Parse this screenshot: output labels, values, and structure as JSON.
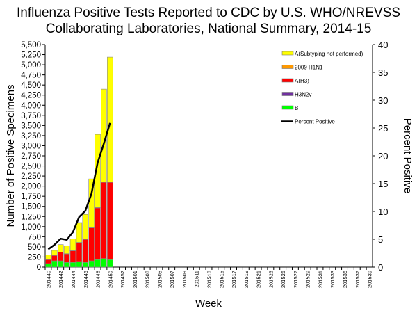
{
  "chart_data": {
    "type": "bar",
    "title": "Influenza Positive Tests Reported to CDC by U.S. WHO/NREVSS Collaborating Laboratories, National Summary, 2014-15",
    "title_lines": [
      "Influenza Positive Tests Reported to CDC by U.S. WHO/NREVSS",
      "Collaborating Laboratories, National Summary, 2014-15"
    ],
    "xlabel": "Week",
    "ylabel": "Number of Positive Specimens",
    "y2label": "Percent Positive",
    "ylim": [
      0,
      5500
    ],
    "y2lim": [
      0,
      40
    ],
    "yticks": [
      0,
      250,
      500,
      750,
      1000,
      1250,
      1500,
      1750,
      2000,
      2250,
      2500,
      2750,
      3000,
      3250,
      3500,
      3750,
      4000,
      4250,
      4500,
      4750,
      5000,
      5250,
      5500
    ],
    "y2ticks": [
      0,
      5,
      10,
      15,
      20,
      25,
      30,
      35,
      40
    ],
    "weeks": [
      "201440",
      "201441",
      "201442",
      "201443",
      "201444",
      "201445",
      "201446",
      "201447",
      "201448",
      "201449",
      "201450",
      "201451",
      "201452",
      "201453",
      "201501",
      "201502",
      "201503",
      "201504",
      "201505",
      "201506",
      "201507",
      "201508",
      "201509",
      "201510",
      "201511",
      "201512",
      "201513",
      "201514",
      "201515",
      "201516",
      "201517",
      "201518",
      "201519",
      "201520",
      "201521",
      "201522",
      "201523",
      "201524",
      "201525",
      "201526",
      "201527",
      "201528",
      "201529",
      "201530",
      "201531",
      "201532",
      "201533",
      "201534",
      "201535",
      "201536",
      "201537",
      "201538",
      "201539"
    ],
    "xticklabels": [
      "201440",
      "201442",
      "201444",
      "201446",
      "201448",
      "201450",
      "201452",
      "201501",
      "201503",
      "201505",
      "201507",
      "201509",
      "201511",
      "201513",
      "201515",
      "201517",
      "201519",
      "201521",
      "201523",
      "201525",
      "201527",
      "201529",
      "201531",
      "201533",
      "201535",
      "201537",
      "201539"
    ],
    "series": [
      {
        "name": "B",
        "color": "#00ff00",
        "values": [
          86,
          155,
          155,
          115,
          115,
          138,
          115,
          155,
          184,
          212,
          184
        ]
      },
      {
        "name": "H3N2v",
        "color": "#7030a0",
        "values": [
          0,
          0,
          0,
          0,
          0,
          0,
          0,
          0,
          0,
          0,
          0
        ]
      },
      {
        "name": "A(H3)",
        "color": "#ff0000",
        "values": [
          98,
          132,
          212,
          212,
          286,
          464,
          568,
          813,
          1278,
          1881,
          1909
        ]
      },
      {
        "name": "2009 H1N1",
        "color": "#ff9900",
        "values": [
          4,
          5,
          6,
          5,
          6,
          8,
          8,
          10,
          12,
          14,
          14
        ]
      },
      {
        "name": "A(Subtyping not performed)",
        "color": "#ffff00",
        "values": [
          112,
          121,
          183,
          196,
          293,
          490,
          611,
          1202,
          1806,
          2291,
          3082
        ]
      }
    ],
    "line": {
      "name": "Percent Positive",
      "color": "#000000",
      "values": [
        3.2,
        4.0,
        5.1,
        4.9,
        6.3,
        9.0,
        10.1,
        13.2,
        18.8,
        22.2,
        25.9
      ]
    },
    "legend_order": [
      "A(Subtyping not performed)",
      "2009 H1N1",
      "A(H3)",
      "H3N2v",
      "B",
      "Percent Positive"
    ],
    "legend_position": "top-right"
  }
}
